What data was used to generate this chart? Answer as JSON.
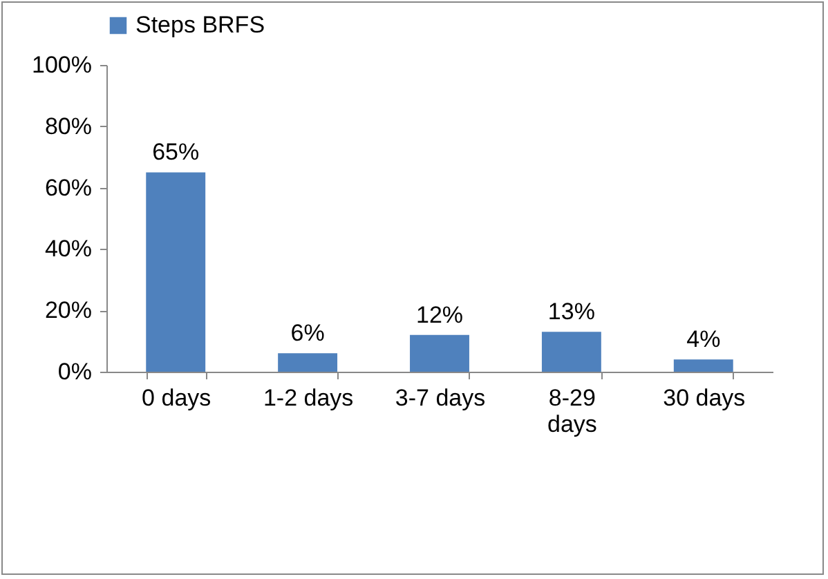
{
  "chart_data": {
    "type": "bar",
    "categories": [
      "0 days",
      "1-2 days",
      "3-7 days",
      "8-29 days",
      "30 days"
    ],
    "series": [
      {
        "name": "Steps BRFS",
        "color": "#4f81bd",
        "values": [
          65,
          6,
          12,
          13,
          4
        ],
        "value_labels": [
          "65%",
          "6%",
          "12%",
          "13%",
          "4%"
        ]
      }
    ],
    "ylim": [
      0,
      100
    ],
    "yticks": [
      {
        "value": 0,
        "label": "0%"
      },
      {
        "value": 20,
        "label": "20%"
      },
      {
        "value": 40,
        "label": "40%"
      },
      {
        "value": 60,
        "label": "60%"
      },
      {
        "value": 80,
        "label": "80%"
      },
      {
        "value": 100,
        "label": "100%"
      }
    ],
    "grid": false,
    "legend": "top"
  }
}
